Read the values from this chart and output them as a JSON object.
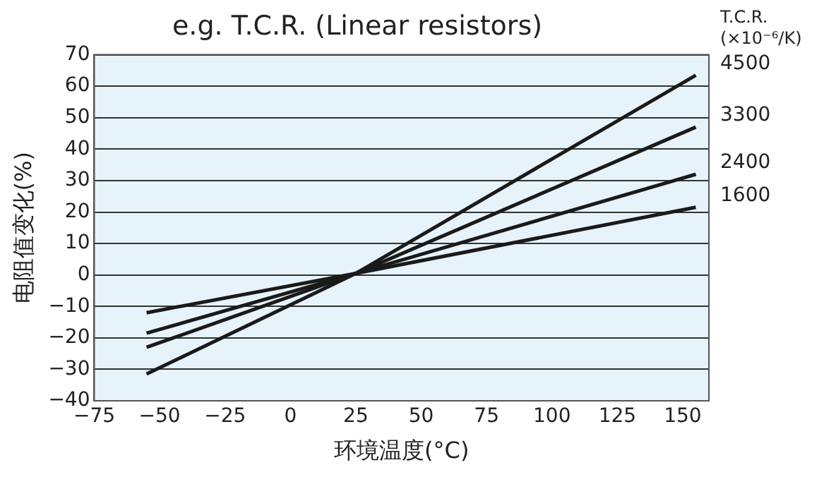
{
  "chart_data": {
    "type": "line",
    "title": "e.g. T.C.R. (Linear resistors)",
    "xlabel": "环境温度(°C)",
    "ylabel": "电阻值变化(%)",
    "legend_title": "T.C.R. (×10⁻⁶/K)",
    "x": [
      -55,
      25,
      155
    ],
    "series": [
      {
        "name": "4500",
        "color": "#1a1a1a",
        "values": [
          -31.5,
          0.5,
          63.5
        ]
      },
      {
        "name": "3300",
        "color": "#1a1a1a",
        "values": [
          -23,
          0.5,
          47
        ]
      },
      {
        "name": "2400",
        "color": "#1a1a1a",
        "values": [
          -18.5,
          0.5,
          32
        ]
      },
      {
        "name": "1600",
        "color": "#1a1a1a",
        "values": [
          -12,
          0.5,
          21.5
        ]
      }
    ],
    "xlim": [
      -75,
      160
    ],
    "xticks": [
      -75,
      -50,
      -25,
      0,
      25,
      50,
      75,
      100,
      125,
      150
    ],
    "ylim": [
      -40,
      70
    ],
    "yticks": [
      -40,
      -30,
      -20,
      -10,
      0,
      10,
      20,
      30,
      40,
      50,
      60,
      70
    ],
    "grid": "y",
    "legend": false,
    "marker": "none",
    "line_style": "solid"
  }
}
